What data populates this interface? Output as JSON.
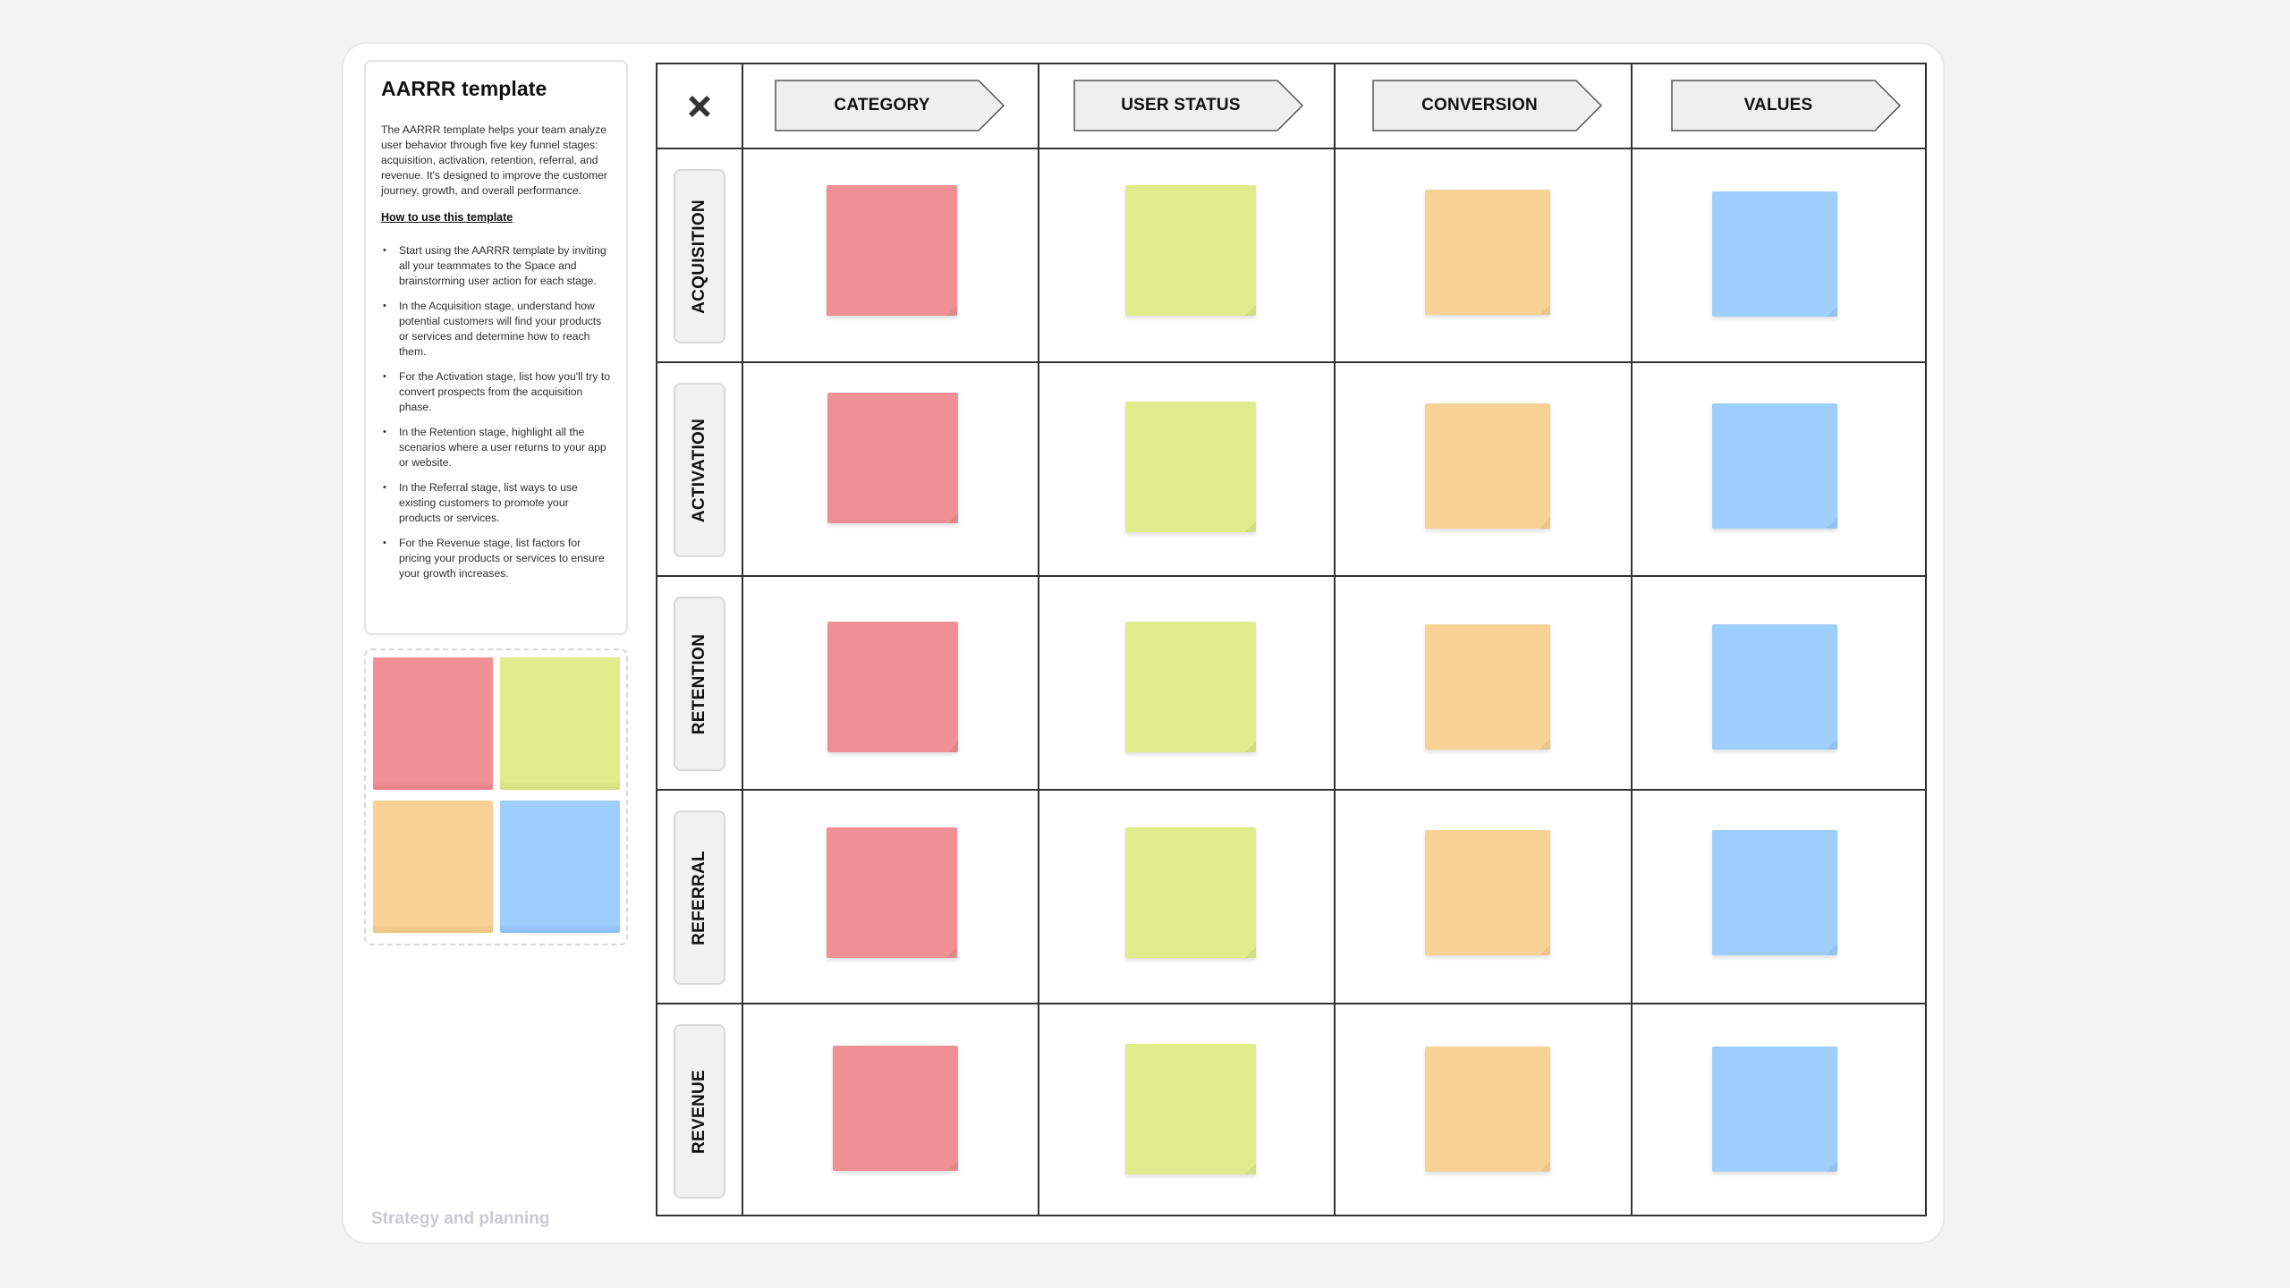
{
  "sidebar": {
    "title": "AARRR template",
    "description": "The AARRR template helps your team analyze user behavior through five key funnel stages: acquisition, activation, retention, referral, and revenue. It's designed to improve the customer journey, growth, and overall performance.",
    "howto_link": "How to use this template",
    "steps": [
      "Start using the AARRR template by inviting all your teammates to the Space and brainstorming user action for each stage.",
      "In the Acquisition stage, understand how potential customers will find your products or services and determine how to reach them.",
      "For the Activation stage, list how you'll try to convert prospects from the acquisition phase.",
      "In the Retention stage, highlight all the scenarios where a user returns to your app or website.",
      "In the Referral stage, list ways to use existing customers to promote your products or services.",
      "For the Revenue stage, list factors for pricing your products or services to ensure your growth increases."
    ]
  },
  "footer": {
    "label": "Strategy and planning"
  },
  "board": {
    "close_icon": "close-icon",
    "columns": [
      "CATEGORY",
      "USER STATUS",
      "CONVERSION",
      "VALUES"
    ],
    "rows": [
      "ACQUISITION",
      "ACTIVATION",
      "RETENTION",
      "REFERRAL",
      "REVENUE"
    ]
  },
  "colors": {
    "red": "#f09095",
    "green": "#dfec8c",
    "orange": "#f8d194",
    "blue": "#9dcefc",
    "grid_line": "#333333",
    "header_fill": "#efefef"
  }
}
